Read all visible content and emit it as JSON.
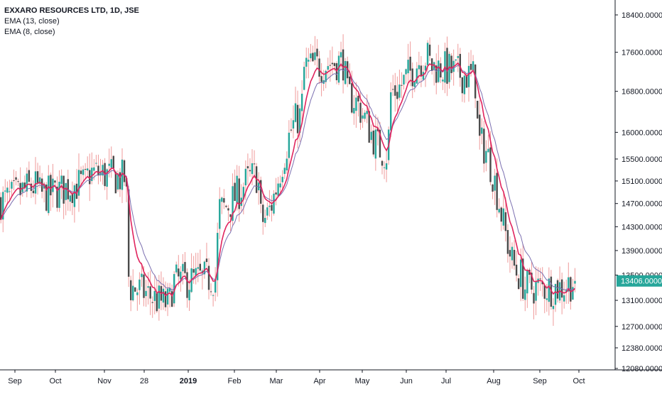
{
  "chart_data": {
    "type": "candlestick",
    "title": "EXXARO RESOURCES LTD, 1D, JSE",
    "indicators": [
      {
        "name": "EMA (13, close)",
        "color": "#7b6fb0"
      },
      {
        "name": "EMA (8, close)",
        "color": "#e0245e"
      }
    ],
    "colors": {
      "up": "#26a69a",
      "down": "#4a4a4a",
      "wick": "#ef9a9a",
      "price_tag": "#26a69a"
    },
    "last_price": 13406,
    "last_price_label": "13406.00000",
    "y_scale": "log",
    "ylim": [
      12080,
      18600
    ],
    "y_ticks": [
      18400,
      17600,
      16800,
      16000,
      15500,
      15100,
      14700,
      14300,
      13900,
      13500,
      13100,
      12700,
      12380,
      12080
    ],
    "y_tick_labels": [
      "18400.00000",
      "17600.00000",
      "16800.00000",
      "16000.00000",
      "15500.00000",
      "15100.00000",
      "14700.00000",
      "14300.00000",
      "13900.00000",
      "13500.00000",
      "13100.00000",
      "12700.00000",
      "12380.00000",
      "12080.00000"
    ],
    "x_labels": [
      "Sep",
      "Oct",
      "Nov",
      "28",
      "2019",
      "Feb",
      "Mar",
      "Apr",
      "May",
      "Jun",
      "Jul",
      "Aug",
      "Sep",
      "Oct"
    ],
    "x_label_bold": [
      false,
      false,
      false,
      false,
      true,
      false,
      false,
      false,
      false,
      false,
      false,
      false,
      false,
      false
    ],
    "close_path": [
      [
        "Sep",
        14750
      ],
      [
        "Sep",
        15000
      ],
      [
        "Oct",
        14850
      ],
      [
        "Oct",
        15050
      ],
      [
        "Nov",
        15250
      ],
      [
        "Nov",
        15150
      ],
      [
        "28",
        13300
      ],
      [
        "28",
        13050
      ],
      [
        "2019",
        13400
      ],
      [
        "2019",
        13450
      ],
      [
        "Feb",
        14600
      ],
      [
        "Feb",
        15200
      ],
      [
        "Mar",
        14400
      ],
      [
        "Mar",
        16300
      ],
      [
        "Apr",
        17300
      ],
      [
        "Apr",
        17400
      ],
      [
        "May",
        16700
      ],
      [
        "May",
        15600
      ],
      [
        "Jun",
        16800
      ],
      [
        "Jun",
        17500
      ],
      [
        "Jul",
        17300
      ],
      [
        "Jul",
        17100
      ],
      [
        "Aug",
        15800
      ],
      [
        "Aug",
        13500
      ],
      [
        "Sep",
        13300
      ],
      [
        "Sep",
        13300
      ],
      [
        "Oct",
        13406
      ]
    ]
  }
}
